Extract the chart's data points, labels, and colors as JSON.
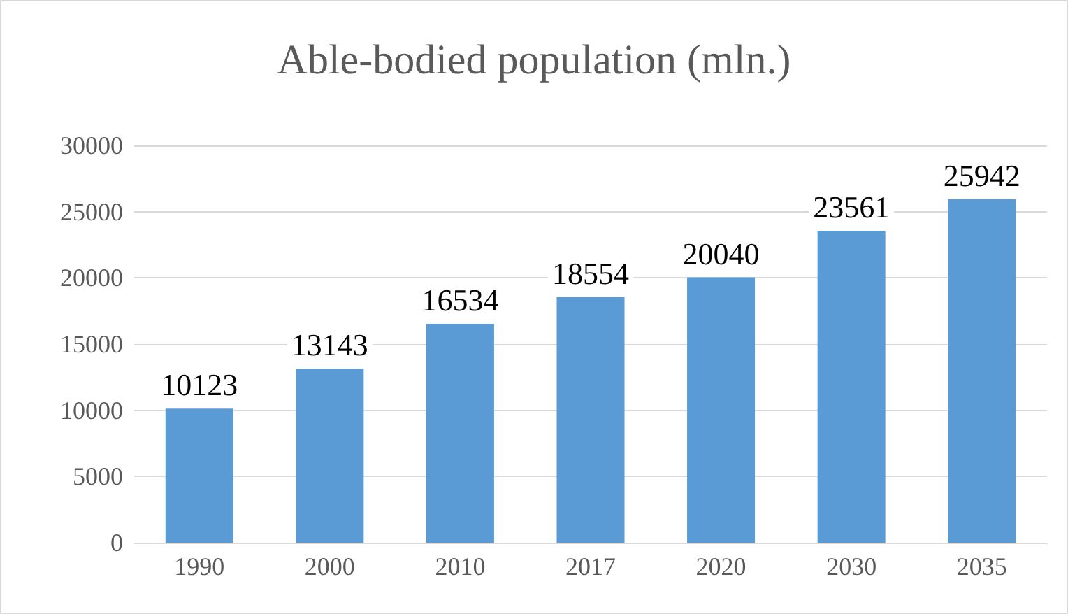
{
  "chart_data": {
    "type": "bar",
    "title": "Able-bodied population (mln.)",
    "categories": [
      "1990",
      "2000",
      "2010",
      "2017",
      "2020",
      "2030",
      "2035"
    ],
    "values": [
      10123,
      13143,
      16534,
      18554,
      20040,
      23561,
      25942
    ],
    "color": "#5b9bd5",
    "ylim": [
      0,
      30000
    ],
    "yticks": [
      0,
      5000,
      10000,
      15000,
      20000,
      25000,
      30000
    ],
    "grid": "y",
    "data_labels": true
  }
}
